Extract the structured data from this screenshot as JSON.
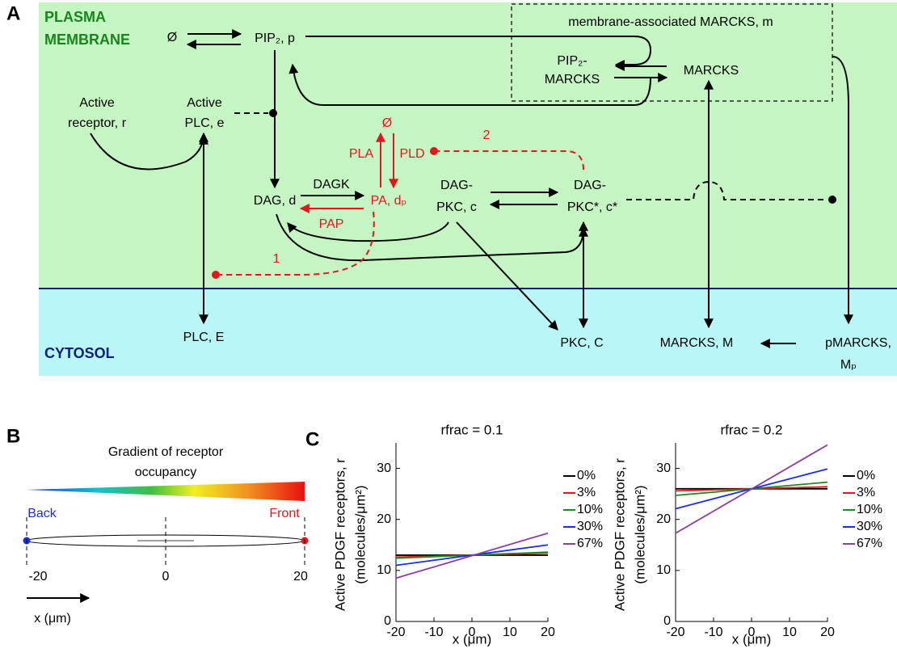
{
  "panel_labels": {
    "a": "A",
    "b": "B",
    "c": "C"
  },
  "diagram": {
    "plasma": "PLASMA",
    "membrane": "MEMBRANE",
    "cytosol": "CYTOSOL",
    "null_top": "Ø",
    "pip2": "PIP₂, p",
    "box_title": "membrane-associated MARCKS, m",
    "pip2_marcks": [
      "PIP₂-",
      "MARCKS"
    ],
    "marcks_m": "MARCKS",
    "active_receptor": [
      "Active",
      "receptor, r"
    ],
    "active_plc": [
      "Active",
      "PLC, e"
    ],
    "null_pa": "Ø",
    "pla": "PLA",
    "pld": "PLD",
    "feedback_2": "2",
    "dag": "DAG, d",
    "dagk": "DAGK",
    "pa": "PA, dₚ",
    "pap": "PAP",
    "dag_pkc": [
      "DAG-",
      "PKC, c"
    ],
    "dag_pkc_star": [
      "DAG-",
      "PKC*, c*"
    ],
    "feedback_1": "1",
    "plc": "PLC, E",
    "pkc": "PKC, C",
    "marcks": "MARCKS, M",
    "pmarcks": [
      "pMARCKS,",
      "Mₚ"
    ]
  },
  "panel_b": {
    "title": [
      "Gradient of receptor",
      "occupancy"
    ],
    "back": "Back",
    "front": "Front",
    "ticks": [
      -20,
      0,
      20
    ],
    "xlabel": "x (μm)"
  },
  "chart_data": [
    {
      "type": "line",
      "title": "rfrac = 0.1",
      "xlabel": "x (μm)",
      "ylabel": [
        "Active PDGF receptors, r",
        "(molecules/μm²)"
      ],
      "x": [
        -20,
        20
      ],
      "xlim": [
        -20,
        20
      ],
      "xticks": [
        -20,
        -10,
        0,
        10,
        20
      ],
      "ylim": [
        0,
        35
      ],
      "yticks": [
        0,
        10,
        20,
        30
      ],
      "legend": "right",
      "series": [
        {
          "name": "0%",
          "color": "#000000",
          "values": [
            13,
            13
          ]
        },
        {
          "name": "3%",
          "color": "#e8141c",
          "values": [
            12.6,
            13.4
          ]
        },
        {
          "name": "10%",
          "color": "#1f8a1f",
          "values": [
            12.4,
            13.6
          ]
        },
        {
          "name": "30%",
          "color": "#1a2ee0",
          "values": [
            11,
            15
          ]
        },
        {
          "name": "67%",
          "color": "#8a3fa0",
          "values": [
            8.5,
            17.3
          ]
        }
      ]
    },
    {
      "type": "line",
      "title": "rfrac = 0.2",
      "xlabel": "x (μm)",
      "ylabel": [
        "Active PDGF receptors, r",
        "(molecules/μm²)"
      ],
      "x": [
        -20,
        20
      ],
      "xlim": [
        -20,
        20
      ],
      "xticks": [
        -20,
        -10,
        0,
        10,
        20
      ],
      "ylim": [
        0,
        35
      ],
      "yticks": [
        0,
        10,
        20,
        30
      ],
      "legend": "right",
      "series": [
        {
          "name": "0%",
          "color": "#000000",
          "values": [
            26,
            26
          ]
        },
        {
          "name": "3%",
          "color": "#e8141c",
          "values": [
            25.6,
            26.4
          ]
        },
        {
          "name": "10%",
          "color": "#1f8a1f",
          "values": [
            24.7,
            27.3
          ]
        },
        {
          "name": "30%",
          "color": "#1a2ee0",
          "values": [
            22.1,
            29.9
          ]
        },
        {
          "name": "67%",
          "color": "#8a3fa0",
          "values": [
            17.3,
            34.6
          ]
        }
      ]
    }
  ]
}
